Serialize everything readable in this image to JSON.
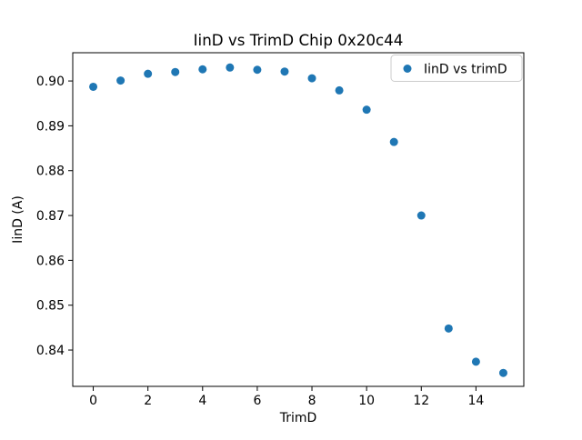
{
  "figure": {
    "background": "#ffffff"
  },
  "chart_data": {
    "type": "scatter",
    "title": "IinD vs TrimD Chip 0x20c44",
    "xlabel": "TrimD",
    "ylabel": "IinD (A)",
    "legend": {
      "position": "upper right",
      "entries": [
        {
          "label": "IinD vs trimD",
          "marker": "circle",
          "marker_color": "#1f77b4"
        }
      ]
    },
    "x": [
      0,
      1,
      2,
      3,
      4,
      5,
      6,
      7,
      8,
      9,
      10,
      11,
      12,
      13,
      14,
      15
    ],
    "series": [
      {
        "name": "IinD vs trimD",
        "color": "#1f77b4",
        "values": [
          0.8987,
          0.9001,
          0.9016,
          0.902,
          0.9026,
          0.903,
          0.9025,
          0.9021,
          0.9006,
          0.8979,
          0.8936,
          0.8864,
          0.87,
          0.8448,
          0.8374,
          0.8349
        ]
      }
    ],
    "xlim": [
      -0.75,
      15.75
    ],
    "ylim": [
      0.8319,
      0.9063
    ],
    "xticks": [
      0,
      2,
      4,
      6,
      8,
      10,
      12,
      14
    ],
    "yticks": [
      0.84,
      0.85,
      0.86,
      0.87,
      0.88,
      0.89,
      0.9
    ],
    "ytick_decimals": 2,
    "grid": false,
    "marker": "circle",
    "marker_radius_px": 4.5,
    "axis_color": "#000000",
    "text_color": "#000000"
  }
}
